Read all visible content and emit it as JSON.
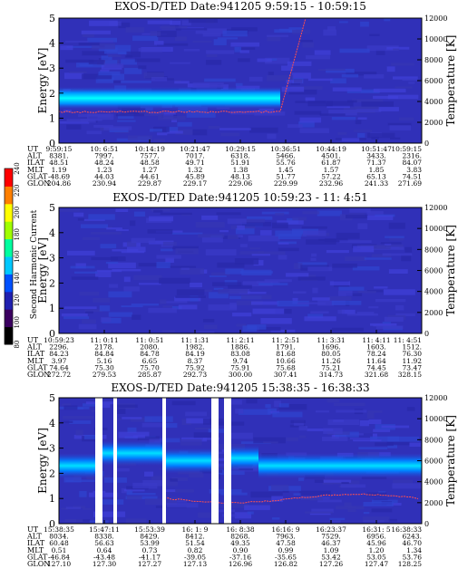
{
  "chart_data": [
    {
      "type": "heatmap",
      "title": "EXOS-D/TED   Date:941205  9:59:15 - 10:59:15",
      "ylabel": "Energy [eV]",
      "y2label": "Temperature [K]",
      "ylim": [
        0,
        5
      ],
      "y2lim": [
        0,
        12000
      ],
      "yticks": [
        "0",
        "1",
        "2",
        "3",
        "4",
        "5"
      ],
      "y2ticks": [
        "0",
        "2000",
        "4000",
        "6000",
        "8000",
        "10000",
        "12000"
      ],
      "band": {
        "x_end_fraction": 0.61,
        "center_ev": 1.8,
        "width_ev": 0.9,
        "color": "#00e8ff"
      },
      "temperature_trace": {
        "level_k": 3000,
        "rise_start_fraction": 0.61,
        "rise_end_fraction": 0.68,
        "end_k": 12000,
        "color": "#ff6060"
      },
      "rows": [
        {
          "name": "UT",
          "values": [
            "9:59:15",
            "10: 6:51",
            "10:14:19",
            "10:21:47",
            "10:29:15",
            "10:36:51",
            "10:44:19",
            "10:51:47",
            "10:59:15"
          ]
        },
        {
          "name": "ALT",
          "values": [
            "8381.",
            "7997.",
            "7577.",
            "7017.",
            "6318.",
            "5466.",
            "4501.",
            "3433.",
            "2316."
          ]
        },
        {
          "name": "ILAT",
          "values": [
            "48.51",
            "48.24",
            "48.58",
            "49.71",
            "51.91",
            "55.76",
            "61.87",
            "71.37",
            "84.07"
          ]
        },
        {
          "name": "MLT",
          "values": [
            "1.19",
            "1.23",
            "1.27",
            "1.32",
            "1.38",
            "1.45",
            "1.57",
            "1.85",
            "3.83"
          ]
        },
        {
          "name": "GLAT",
          "values": [
            "-48.69",
            "44.03",
            "44.61",
            "45.89",
            "48.13",
            "51.77",
            "57.22",
            "65.13",
            "74.51"
          ]
        },
        {
          "name": "GLON",
          "values": [
            "204.86",
            "230.94",
            "229.87",
            "229.17",
            "229.06",
            "229.99",
            "232.96",
            "241.33",
            "271.69"
          ]
        }
      ]
    },
    {
      "type": "heatmap",
      "title": "EXOS-D/TED   Date:941205  10:59:23 - 11: 4:51",
      "ylabel": "Energy [eV]",
      "y2label": "Temperature [K]",
      "ylim": [
        0,
        5
      ],
      "y2lim": [
        0,
        12000
      ],
      "yticks": [
        "0",
        "1",
        "2",
        "3",
        "4",
        "5"
      ],
      "y2ticks": [
        "0",
        "2000",
        "4000",
        "6000",
        "8000",
        "10000",
        "12000"
      ],
      "rows": [
        {
          "name": "UT",
          "values": [
            "10:59:23",
            "11: 0:11",
            "11: 0:51",
            "11: 1:31",
            "11: 2:11",
            "11: 2:51",
            "11: 3:31",
            "11: 4:11",
            "11: 4:51"
          ]
        },
        {
          "name": "ALT",
          "values": [
            "2296.",
            "2178.",
            "2080.",
            "1982.",
            "1886.",
            "1791.",
            "1696.",
            "1603.",
            "1512."
          ]
        },
        {
          "name": "ILAT",
          "values": [
            "84.23",
            "84.84",
            "84.78",
            "84.19",
            "83.08",
            "81.68",
            "80.05",
            "78.24",
            "76.30"
          ]
        },
        {
          "name": "MLT",
          "values": [
            "3.97",
            "5.16",
            "6.65",
            "8.37",
            "9.74",
            "10.66",
            "11.26",
            "11.64",
            "11.92"
          ]
        },
        {
          "name": "GLAT",
          "values": [
            "74.64",
            "75.30",
            "75.70",
            "75.92",
            "75.91",
            "75.68",
            "75.21",
            "74.45",
            "73.47"
          ]
        },
        {
          "name": "GLON",
          "values": [
            "272.72",
            "279.53",
            "285.87",
            "292.73",
            "300.00",
            "307.41",
            "314.73",
            "321.68",
            "328.15"
          ]
        }
      ]
    },
    {
      "type": "heatmap",
      "title": "EXOS-D/TED   Date:941205  15:38:35 - 16:38:33",
      "ylabel": "Energy [eV]",
      "y2label": "Temperature [K]",
      "ylim": [
        0,
        5
      ],
      "y2lim": [
        0,
        12000
      ],
      "yticks": [
        "0",
        "1",
        "2",
        "3",
        "4",
        "5"
      ],
      "y2ticks": [
        "0",
        "2000",
        "4000",
        "6000",
        "8000",
        "10000",
        "12000"
      ],
      "gaps_fraction": [
        [
          0.1,
          0.12
        ],
        [
          0.15,
          0.16
        ],
        [
          0.285,
          0.295
        ],
        [
          0.42,
          0.44
        ],
        [
          0.455,
          0.475
        ]
      ],
      "rows": [
        {
          "name": "UT",
          "values": [
            "15:38:35",
            "15:47:11",
            "15:53:39",
            "16: 1: 9",
            "16: 8:38",
            "16:16: 9",
            "16:23:37",
            "16:31: 5",
            "16:38:33"
          ]
        },
        {
          "name": "ALT",
          "values": [
            "8034.",
            "8338.",
            "8429.",
            "8412.",
            "8268.",
            "7963.",
            "7529.",
            "6956.",
            "6243."
          ]
        },
        {
          "name": "ILAT",
          "values": [
            "60.48",
            "56.63",
            "53.99",
            "51.54",
            "49.35",
            "47.58",
            "46.37",
            "45.96",
            "46.70"
          ]
        },
        {
          "name": "MLT",
          "values": [
            "0.51",
            "0.64",
            "0.73",
            "0.82",
            "0.90",
            "0.99",
            "1.09",
            "1.20",
            "1.34"
          ]
        },
        {
          "name": "GLAT",
          "values": [
            "-46.84",
            "-43.48",
            "-41.17",
            "-39.05",
            "-37.16",
            "-35.65",
            "53.42",
            "53.05",
            "53.76"
          ]
        },
        {
          "name": "GLON",
          "values": [
            "127.10",
            "127.30",
            "127.27",
            "127.13",
            "126.96",
            "126.82",
            "127.26",
            "127.47",
            "128.25"
          ]
        }
      ]
    }
  ],
  "colorbar": {
    "label": "Second Harmonic Current",
    "ticks": [
      "80",
      "100",
      "120",
      "140",
      "160",
      "180",
      "200",
      "220",
      "240"
    ],
    "colors": [
      "#000000",
      "#3b0060",
      "#2020b0",
      "#0050ff",
      "#00c8ff",
      "#00ffa0",
      "#a0ff00",
      "#ffff00",
      "#ff8000",
      "#ff0000"
    ]
  },
  "colors": {
    "background": "#3030b8",
    "band_core": "#00ffff",
    "band_edge": "#0090ff",
    "trace": "#ff5050"
  }
}
